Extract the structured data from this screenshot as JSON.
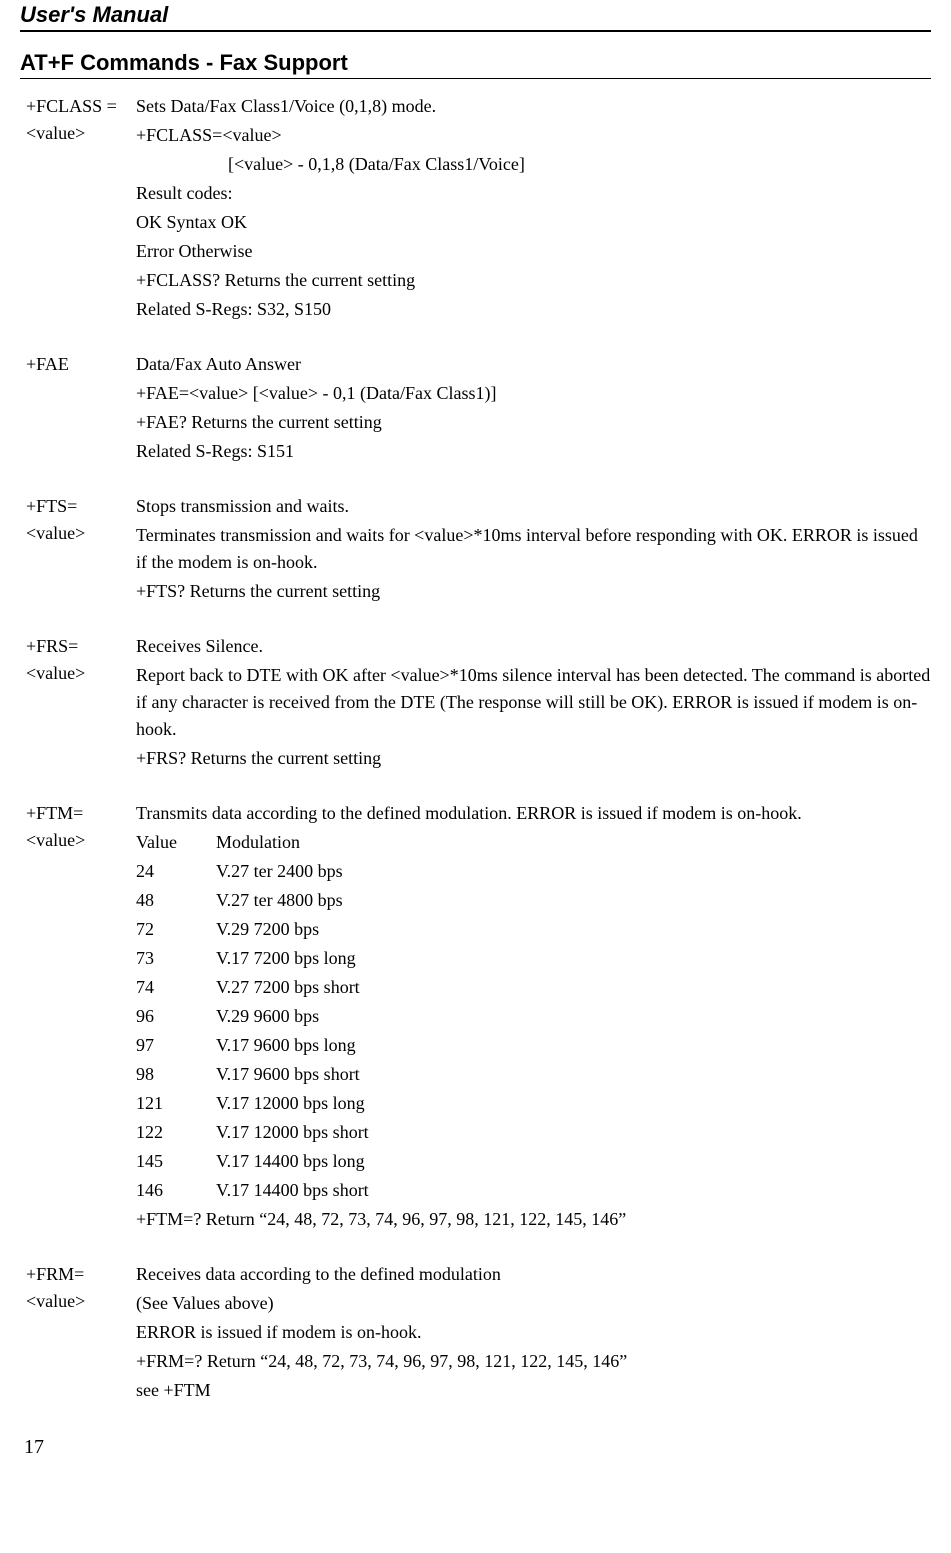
{
  "header": "User's Manual",
  "section": "AT+F Commands - Fax Support",
  "pageNumber": "17",
  "entries": [
    {
      "cmd": "+FCLASS =<value>",
      "lines": [
        "Sets Data/Fax Class1/Voice (0,1,8) mode.",
        "+FCLASS=<value>",
        "indent:[<value> - 0,1,8  (Data/Fax Class1/Voice]",
        "Result codes:",
        "OK     Syntax OK",
        "Error   Otherwise",
        "+FCLASS?  Returns the current setting",
        "Related S-Regs: S32, S150"
      ]
    },
    {
      "cmd": "+FAE",
      "lines": [
        " Data/Fax Auto Answer",
        "+FAE=<value> [<value> - 0,1 (Data/Fax Class1)]",
        "+FAE?  Returns the current setting",
        "Related S-Regs: S151"
      ]
    },
    {
      "cmd": "+FTS= <value>",
      "lines": [
        "Stops transmission and waits.",
        "Terminates transmission and waits for <value>*10ms interval before responding with OK. ERROR is issued if the modem is on-hook.",
        "+FTS?  Returns the current setting"
      ]
    },
    {
      "cmd": "+FRS= <value>",
      "lines": [
        "Receives Silence.",
        "Report back to DTE with OK after <value>*10ms silence interval has been detected. The command is aborted if any character is received from the DTE (The response will still be OK). ERROR is issued if modem is on-hook.",
        "+FRS?  Returns the current setting"
      ]
    },
    {
      "cmd": "+FTM= <value>",
      "lines": [
        "Transmits data according to the defined modulation. ERROR is issued if modem is on-hook."
      ],
      "modHeader": {
        "val": "Value",
        "mod": "Modulation"
      },
      "modRows": [
        {
          "val": "24",
          "mod": "V.27 ter 2400 bps"
        },
        {
          "val": "48",
          "mod": "V.27 ter 4800 bps"
        },
        {
          "val": "72",
          "mod": "V.29  7200 bps"
        },
        {
          "val": "73",
          "mod": "V.17  7200 bps long"
        },
        {
          "val": "74",
          "mod": "V.27  7200 bps short"
        },
        {
          "val": "96",
          "mod": "V.29  9600 bps"
        },
        {
          "val": "97",
          "mod": "V.17  9600 bps long"
        },
        {
          "val": "98",
          "mod": "V.17  9600 bps short"
        },
        {
          "val": "121",
          "mod": "V.17 12000 bps long"
        },
        {
          "val": "122",
          "mod": "V.17 12000 bps short"
        },
        {
          "val": "145",
          "mod": "V.17 14400 bps long"
        },
        {
          "val": "146",
          "mod": "V.17 14400 bps short"
        }
      ],
      "afterMod": [
        "+FTM=?  Return “24, 48, 72, 73, 74, 96, 97, 98, 121, 122, 145, 146”"
      ]
    },
    {
      "cmd": "+FRM= <value>",
      "lines": [
        "Receives data according to the defined modulation",
        "(See Values above)",
        "ERROR is issued if modem is on-hook.",
        "+FRM=?  Return “24, 48, 72, 73, 74, 96, 97, 98, 121, 122, 145, 146”",
        "see +FTM"
      ]
    }
  ]
}
